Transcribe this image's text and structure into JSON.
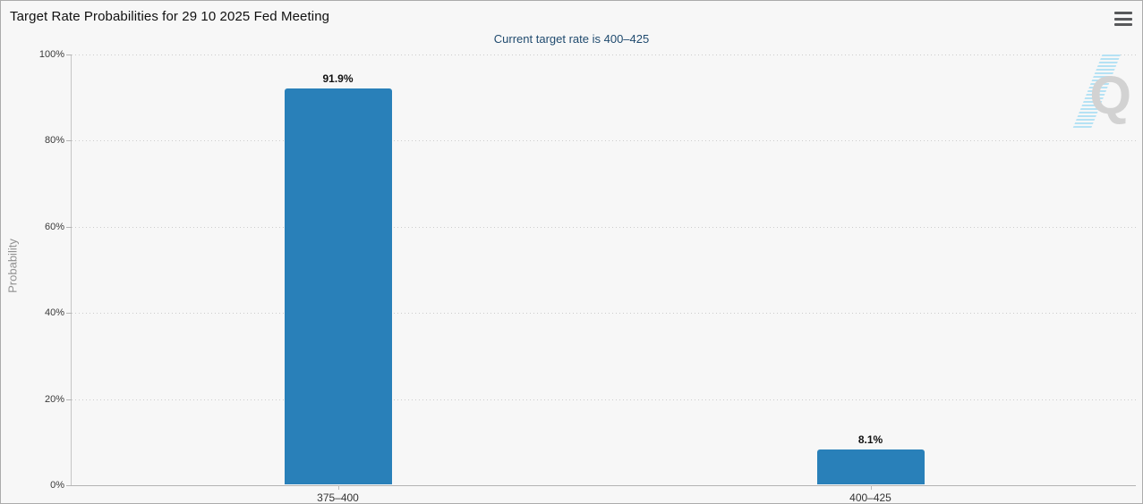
{
  "header": {
    "title": "Target Rate Probabilities for 29 10 2025 Fed Meeting",
    "menu_icon": "hamburger-menu"
  },
  "subtitle": "Current target rate is 400–425",
  "watermark": {
    "letter": "Q"
  },
  "colors": {
    "background": "#f7f7f7",
    "bar": "#2980b9",
    "subtitle_text": "#1f4a6e",
    "axis_text": "#3a3a3a",
    "ylabel_text": "#909090",
    "gridline": "#cccccc",
    "watermark_gray": "#d2d2d2",
    "watermark_blue": "#b5e2f4"
  },
  "chart_data": {
    "type": "bar",
    "title": "Target Rate Probabilities for 29 10 2025 Fed Meeting",
    "subtitle": "Current target rate is 400–425",
    "categories": [
      "375–400",
      "400–425"
    ],
    "values": [
      91.9,
      8.1
    ],
    "value_labels": [
      "91.9%",
      "8.1%"
    ],
    "xlabel": "",
    "ylabel": "Probability",
    "ylim": [
      0,
      100
    ],
    "ytick_step": 20,
    "ytick_labels": [
      "0%",
      "20%",
      "40%",
      "60%",
      "80%",
      "100%"
    ],
    "grid": "horizontal-dotted",
    "legend_position": "none",
    "bar_color": "#2980b9"
  }
}
